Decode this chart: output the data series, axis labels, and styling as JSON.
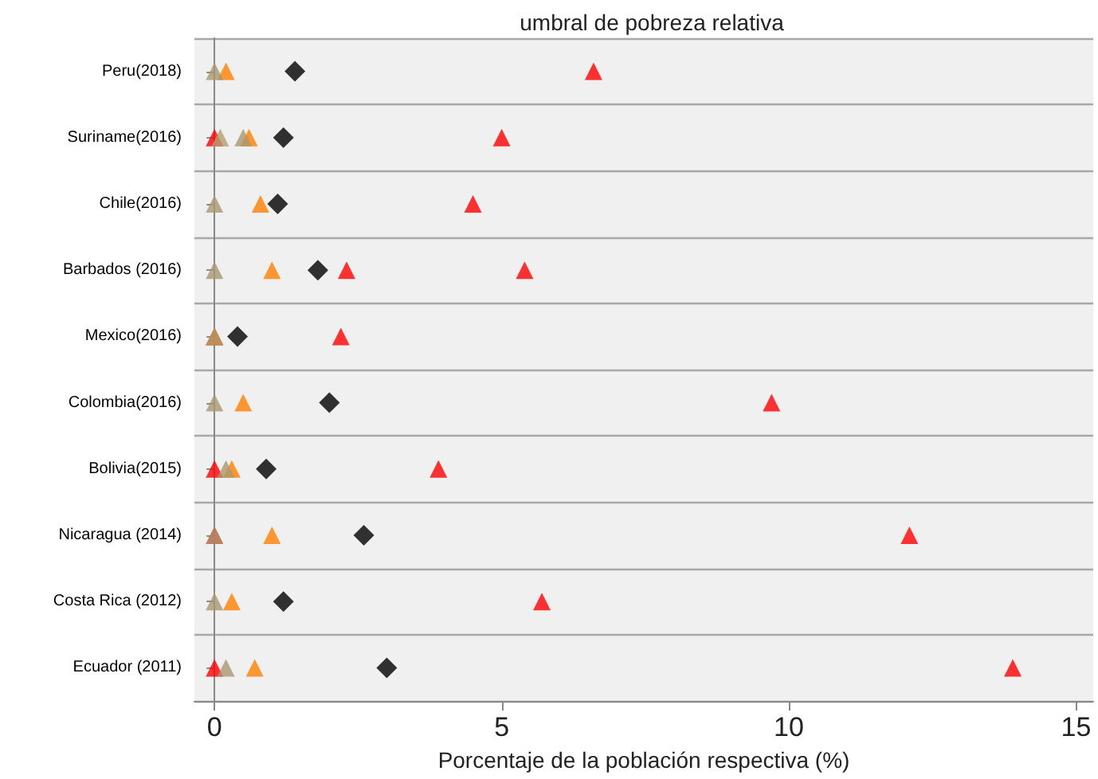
{
  "chart_data": {
    "type": "scatter",
    "orientation": "horizontal",
    "title": "umbral de pobreza relativa",
    "xlabel": "Porcentaje de la población respectiva (%)",
    "categories": [
      "Peru(2018)",
      "Suriname(2016)",
      "Chile(2016)",
      "Barbados (2016)",
      "Mexico(2016)",
      "Colombia(2016)",
      "Bolivia(2015)",
      "Nicaragua (2014)",
      "Costa Rica (2012)",
      "Ecuador (2011)"
    ],
    "xlim": [
      -0.35,
      15.3
    ],
    "xticks": [
      0,
      5,
      10,
      15
    ],
    "grid": "y",
    "series": [
      {
        "color": "#ff0000",
        "marker": "triangle",
        "values": [
          6.6,
          5.0,
          4.5,
          2.3,
          2.2,
          9.7,
          3.9,
          12.1,
          5.7,
          13.9
        ]
      },
      {
        "color": "#ff0000",
        "marker": "triangle",
        "values": [
          null,
          0,
          null,
          5.4,
          0,
          null,
          0,
          0,
          null,
          0
        ]
      },
      {
        "color": "#b0a070",
        "marker": "triangle",
        "values": [
          null,
          0.1,
          null,
          null,
          null,
          null,
          null,
          null,
          null,
          null
        ]
      },
      {
        "color": "#ff8000",
        "marker": "triangle",
        "values": [
          0.2,
          0.6,
          0.8,
          1.0,
          0,
          0.5,
          0.3,
          1.0,
          0.3,
          0.7
        ]
      },
      {
        "color": "#a89870",
        "marker": "triangle",
        "values": [
          0,
          0.5,
          0,
          0,
          0,
          0,
          0.2,
          0,
          0,
          0.2
        ]
      },
      {
        "color": "#000000",
        "marker": "diamond",
        "values": [
          1.4,
          1.2,
          1.1,
          1.8,
          0.4,
          2.0,
          0.9,
          2.6,
          1.2,
          3.0
        ]
      }
    ]
  }
}
